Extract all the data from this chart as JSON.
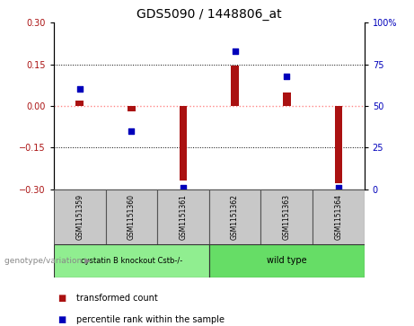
{
  "title": "GDS5090 / 1448806_at",
  "samples": [
    "GSM1151359",
    "GSM1151360",
    "GSM1151361",
    "GSM1151362",
    "GSM1151363",
    "GSM1151364"
  ],
  "transformed_counts": [
    0.02,
    -0.02,
    -0.27,
    0.145,
    0.05,
    -0.28
  ],
  "percentile_ranks": [
    60,
    35,
    1,
    83,
    68,
    1
  ],
  "groups": [
    {
      "label": "cystatin B knockout Cstb-/-",
      "samples": [
        0,
        1,
        2
      ],
      "color": "#90EE90"
    },
    {
      "label": "wild type",
      "samples": [
        3,
        4,
        5
      ],
      "color": "#66CC66"
    }
  ],
  "ylim_left": [
    -0.3,
    0.3
  ],
  "ylim_right": [
    0,
    100
  ],
  "yticks_left": [
    -0.3,
    -0.15,
    0,
    0.15,
    0.3
  ],
  "yticks_right": [
    0,
    25,
    50,
    75,
    100
  ],
  "bar_color": "#AA1111",
  "dot_color": "#0000BB",
  "bg_color": "#FFFFFF",
  "plot_bg": "#FFFFFF",
  "zero_line_color": "#FF8888",
  "label_genotype": "genotype/variation",
  "legend_bar": "transformed count",
  "legend_dot": "percentile rank within the sample",
  "group_row_bg": [
    "#90EE90",
    "#66DD66"
  ],
  "sample_row_bg": "#C8C8C8"
}
